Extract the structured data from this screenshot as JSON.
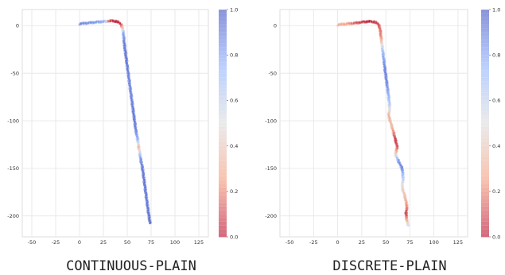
{
  "chart_data": [
    {
      "type": "scatter",
      "caption": "CONTINUOUS-PLAIN",
      "xlim": [
        -60,
        135
      ],
      "ylim": [
        -222,
        17
      ],
      "xticks": [
        -50,
        -25,
        0,
        25,
        50,
        75,
        100,
        125
      ],
      "yticks": [
        0,
        -50,
        -100,
        -150,
        -200
      ],
      "grid": true,
      "colormap": "coolwarm",
      "colorbar": {
        "min": 0.0,
        "max": 1.0,
        "ticks": [
          "0.0",
          "0.2",
          "0.4",
          "0.6",
          "0.8",
          "1.0"
        ]
      },
      "trajectory": [
        {
          "x": 0,
          "y": 2,
          "c": 0.88
        },
        {
          "x": 10,
          "y": 3,
          "c": 0.85
        },
        {
          "x": 20,
          "y": 4,
          "c": 0.82
        },
        {
          "x": 27,
          "y": 4.5,
          "c": 0.75
        },
        {
          "x": 31,
          "y": 5,
          "c": 0.1
        },
        {
          "x": 36,
          "y": 5,
          "c": 0.02
        },
        {
          "x": 40,
          "y": 4,
          "c": 0.0
        },
        {
          "x": 43,
          "y": 2,
          "c": 0.05
        },
        {
          "x": 45,
          "y": -2,
          "c": 0.3
        },
        {
          "x": 46,
          "y": -8,
          "c": 0.8
        },
        {
          "x": 47,
          "y": -20,
          "c": 0.92
        },
        {
          "x": 49,
          "y": -35,
          "c": 0.93
        },
        {
          "x": 51,
          "y": -50,
          "c": 0.9
        },
        {
          "x": 53,
          "y": -65,
          "c": 0.88
        },
        {
          "x": 55,
          "y": -80,
          "c": 0.9
        },
        {
          "x": 57,
          "y": -95,
          "c": 0.93
        },
        {
          "x": 59,
          "y": -110,
          "c": 0.9
        },
        {
          "x": 61,
          "y": -120,
          "c": 0.75
        },
        {
          "x": 62,
          "y": -128,
          "c": 0.3
        },
        {
          "x": 63,
          "y": -133,
          "c": 0.55
        },
        {
          "x": 64,
          "y": -140,
          "c": 0.85
        },
        {
          "x": 66,
          "y": -150,
          "c": 0.92
        },
        {
          "x": 68,
          "y": -165,
          "c": 0.93
        },
        {
          "x": 70,
          "y": -180,
          "c": 0.92
        },
        {
          "x": 72,
          "y": -195,
          "c": 0.93
        },
        {
          "x": 74,
          "y": -208,
          "c": 0.95
        }
      ]
    },
    {
      "type": "scatter",
      "caption": "DISCRETE-PLAIN",
      "xlim": [
        -60,
        135
      ],
      "ylim": [
        -222,
        17
      ],
      "xticks": [
        -50,
        -25,
        0,
        25,
        50,
        75,
        100,
        125
      ],
      "yticks": [
        0,
        -50,
        -100,
        -150,
        -200
      ],
      "grid": true,
      "colormap": "coolwarm",
      "colorbar": {
        "min": 0.0,
        "max": 1.0,
        "ticks": [
          "0.0",
          "0.2",
          "0.4",
          "0.6",
          "0.8",
          "1.0"
        ]
      },
      "trajectory": [
        {
          "x": 0,
          "y": 1,
          "c": 0.3
        },
        {
          "x": 10,
          "y": 2,
          "c": 0.25
        },
        {
          "x": 20,
          "y": 3,
          "c": 0.1
        },
        {
          "x": 27,
          "y": 4,
          "c": 0.05
        },
        {
          "x": 33,
          "y": 4.5,
          "c": 0.02
        },
        {
          "x": 38,
          "y": 4,
          "c": 0.05
        },
        {
          "x": 42,
          "y": 2,
          "c": 0.1
        },
        {
          "x": 44,
          "y": -3,
          "c": 0.15
        },
        {
          "x": 45,
          "y": -12,
          "c": 0.2
        },
        {
          "x": 47,
          "y": -28,
          "c": 0.75
        },
        {
          "x": 49,
          "y": -45,
          "c": 0.9
        },
        {
          "x": 51,
          "y": -60,
          "c": 0.88
        },
        {
          "x": 53,
          "y": -75,
          "c": 0.75
        },
        {
          "x": 54,
          "y": -85,
          "c": 0.6
        },
        {
          "x": 53,
          "y": -95,
          "c": 0.3
        },
        {
          "x": 56,
          "y": -105,
          "c": 0.35
        },
        {
          "x": 58,
          "y": -112,
          "c": 0.2
        },
        {
          "x": 60,
          "y": -120,
          "c": 0.05
        },
        {
          "x": 62,
          "y": -128,
          "c": 0.1
        },
        {
          "x": 60,
          "y": -135,
          "c": 0.4
        },
        {
          "x": 63,
          "y": -142,
          "c": 0.85
        },
        {
          "x": 67,
          "y": -150,
          "c": 0.9
        },
        {
          "x": 68,
          "y": -160,
          "c": 0.65
        },
        {
          "x": 67,
          "y": -170,
          "c": 0.45
        },
        {
          "x": 70,
          "y": -180,
          "c": 0.35
        },
        {
          "x": 72,
          "y": -190,
          "c": 0.2
        },
        {
          "x": 71,
          "y": -198,
          "c": 0.05
        },
        {
          "x": 72,
          "y": -205,
          "c": 0.3
        },
        {
          "x": 73,
          "y": -210,
          "c": 0.6
        }
      ]
    }
  ]
}
